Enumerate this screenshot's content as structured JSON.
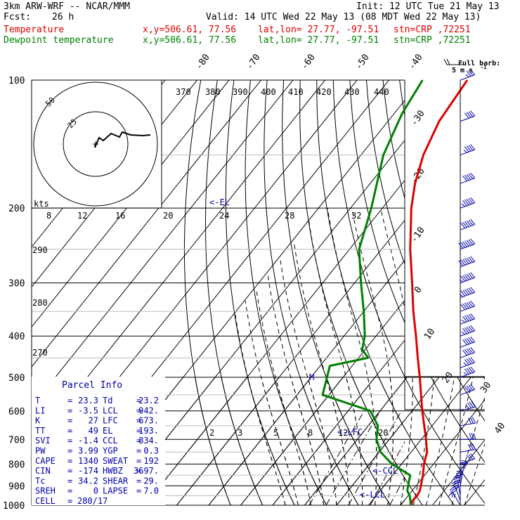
{
  "header": {
    "model": "3km ARW-WRF -- NCAR/MMM",
    "init": "Init: 12 UTC Tue 21 May 13",
    "fcst_label": "Fcst:",
    "fcst_value": "26 h",
    "valid": "Valid: 14 UTC Wed 22 May 13 (08 MDT Wed 22 May 13)",
    "legend": [
      {
        "label": "Temperature",
        "xy": "x,y=506.61, 77.56",
        "latlon": "lat,lon= 27.77, -97.51",
        "stn": "stn=CRP ,72251",
        "color": "#e00000"
      },
      {
        "label": "Dewpoint temperature",
        "xy": "x,y=506.61, 77.56",
        "latlon": "lat,lon= 27.77, -97.51",
        "stn": "stn=CRP ,72251",
        "color": "#008000"
      }
    ]
  },
  "barb_title": "Full barb:",
  "barb_units": "5 m s",
  "barb_exp": "-1",
  "hodo_labels": {
    "units": "kts",
    "r1": "25",
    "r2": "50"
  },
  "el_label": "<-EL",
  "lfc_label": "<-LFC",
  "ccl_label": "<-CCL",
  "lcl_label": "<-LCL",
  "parcel": {
    "title": "Parcel Info",
    "rows": [
      [
        "T",
        "=",
        "23.3",
        "Td",
        "=",
        "23.2"
      ],
      [
        "LI",
        "=",
        "-3.5",
        "LCL",
        "=",
        "942."
      ],
      [
        "K",
        "=",
        "27",
        "LFC",
        "=",
        "673."
      ],
      [
        "TT",
        "=",
        "49",
        "EL",
        "=",
        "193."
      ],
      [
        "SVI",
        "=",
        "-1.4",
        "CCL",
        "=",
        "834."
      ],
      [
        "PW",
        "=",
        "3.99",
        "YGP",
        "=",
        "0.3"
      ],
      [
        "CAPE",
        "=",
        "1340",
        "SWEAT",
        "=",
        "192"
      ],
      [
        "CIN",
        "=",
        "-174",
        "HWBZ",
        "=",
        "3697."
      ],
      [
        "Tc",
        "=",
        "34.2",
        "SHEAR",
        "=",
        "29."
      ],
      [
        "SREH",
        "=",
        "0",
        "LAPSE",
        "=",
        "7.0"
      ],
      [
        "CELL",
        "=",
        "280/17",
        "",
        "",
        ""
      ]
    ]
  },
  "chart_data": {
    "type": "line",
    "diagram": "skew-T log-p",
    "pressure_levels": [
      100,
      200,
      300,
      400,
      500,
      600,
      700,
      800,
      900,
      1000
    ],
    "temp_ticks": [
      "-80",
      "-70",
      "-60",
      "-50",
      "-40",
      "-30",
      "-20",
      "-10",
      "0",
      "10",
      "20",
      "30",
      "40"
    ],
    "theta_labels": [
      "370",
      "380",
      "390",
      "400",
      "410",
      "420",
      "430",
      "440"
    ],
    "theta_lower_labels": [
      "290",
      "280",
      "270"
    ],
    "mixing_upper": [
      "8",
      "12",
      "16",
      "20",
      "24",
      "28",
      "32"
    ],
    "mixing_lower": [
      "2",
      "3",
      "5",
      "8",
      "12",
      "20"
    ],
    "series": [
      {
        "name": "Temperature",
        "color": "#e00000",
        "points": [
          [
            1000,
            23.3
          ],
          [
            975,
            22.6
          ],
          [
            950,
            22.8
          ],
          [
            925,
            22.4
          ],
          [
            900,
            21.5
          ],
          [
            850,
            19.5
          ],
          [
            800,
            17.0
          ],
          [
            750,
            15.0
          ],
          [
            700,
            11.5
          ],
          [
            650,
            7.5
          ],
          [
            600,
            3.2
          ],
          [
            550,
            -1.2
          ],
          [
            500,
            -6.0
          ],
          [
            450,
            -11.5
          ],
          [
            400,
            -17.5
          ],
          [
            350,
            -24.5
          ],
          [
            300,
            -32.0
          ],
          [
            250,
            -41.0
          ],
          [
            200,
            -51.0
          ],
          [
            175,
            -56.0
          ],
          [
            150,
            -60.5
          ],
          [
            125,
            -64.0
          ],
          [
            100,
            -65.5
          ]
        ]
      },
      {
        "name": "Dewpoint temperature",
        "color": "#008000",
        "points": [
          [
            1000,
            23.2
          ],
          [
            950,
            20.5
          ],
          [
            925,
            18.5
          ],
          [
            900,
            17.5
          ],
          [
            850,
            15.5
          ],
          [
            800,
            7.0
          ],
          [
            750,
            0.5
          ],
          [
            700,
            -4.0
          ],
          [
            650,
            -7.0
          ],
          [
            600,
            -13.0
          ],
          [
            550,
            -32.0
          ],
          [
            500,
            -35.0
          ],
          [
            470,
            -37.0
          ],
          [
            450,
            -27.0
          ],
          [
            430,
            -31.0
          ],
          [
            400,
            -33.5
          ],
          [
            350,
            -40.0
          ],
          [
            300,
            -48.0
          ],
          [
            250,
            -57.0
          ],
          [
            200,
            -63.5
          ],
          [
            150,
            -73.0
          ],
          [
            120,
            -77.5
          ],
          [
            100,
            -79.5
          ]
        ]
      }
    ],
    "wind": [
      [
        1000,
        3,
        150
      ],
      [
        975,
        6,
        160
      ],
      [
        950,
        8,
        170
      ],
      [
        925,
        8,
        180
      ],
      [
        900,
        8,
        190
      ],
      [
        850,
        7,
        210
      ],
      [
        800,
        6,
        250
      ],
      [
        750,
        6,
        260
      ],
      [
        700,
        6,
        270
      ],
      [
        650,
        6,
        260
      ],
      [
        600,
        7,
        255
      ],
      [
        550,
        8,
        250
      ],
      [
        500,
        9,
        250
      ],
      [
        475,
        9,
        250
      ],
      [
        450,
        10,
        250
      ],
      [
        425,
        10,
        250
      ],
      [
        400,
        11,
        250
      ],
      [
        375,
        11,
        250
      ],
      [
        350,
        12,
        250
      ],
      [
        325,
        13,
        250
      ],
      [
        300,
        13,
        250
      ],
      [
        275,
        14,
        250
      ],
      [
        250,
        14,
        250
      ],
      [
        225,
        12,
        250
      ],
      [
        200,
        11,
        250
      ],
      [
        175,
        10,
        250
      ],
      [
        150,
        9,
        250
      ],
      [
        125,
        8,
        250
      ],
      [
        100,
        7,
        250
      ]
    ],
    "hodograph": [
      [
        0,
        0
      ],
      [
        -1,
        5
      ],
      [
        5,
        -9
      ],
      [
        11,
        -5
      ],
      [
        22,
        -15
      ],
      [
        34,
        -10
      ],
      [
        38,
        -17
      ],
      [
        50,
        -13
      ],
      [
        67,
        -12
      ],
      [
        78,
        -13
      ]
    ],
    "grid": true
  }
}
